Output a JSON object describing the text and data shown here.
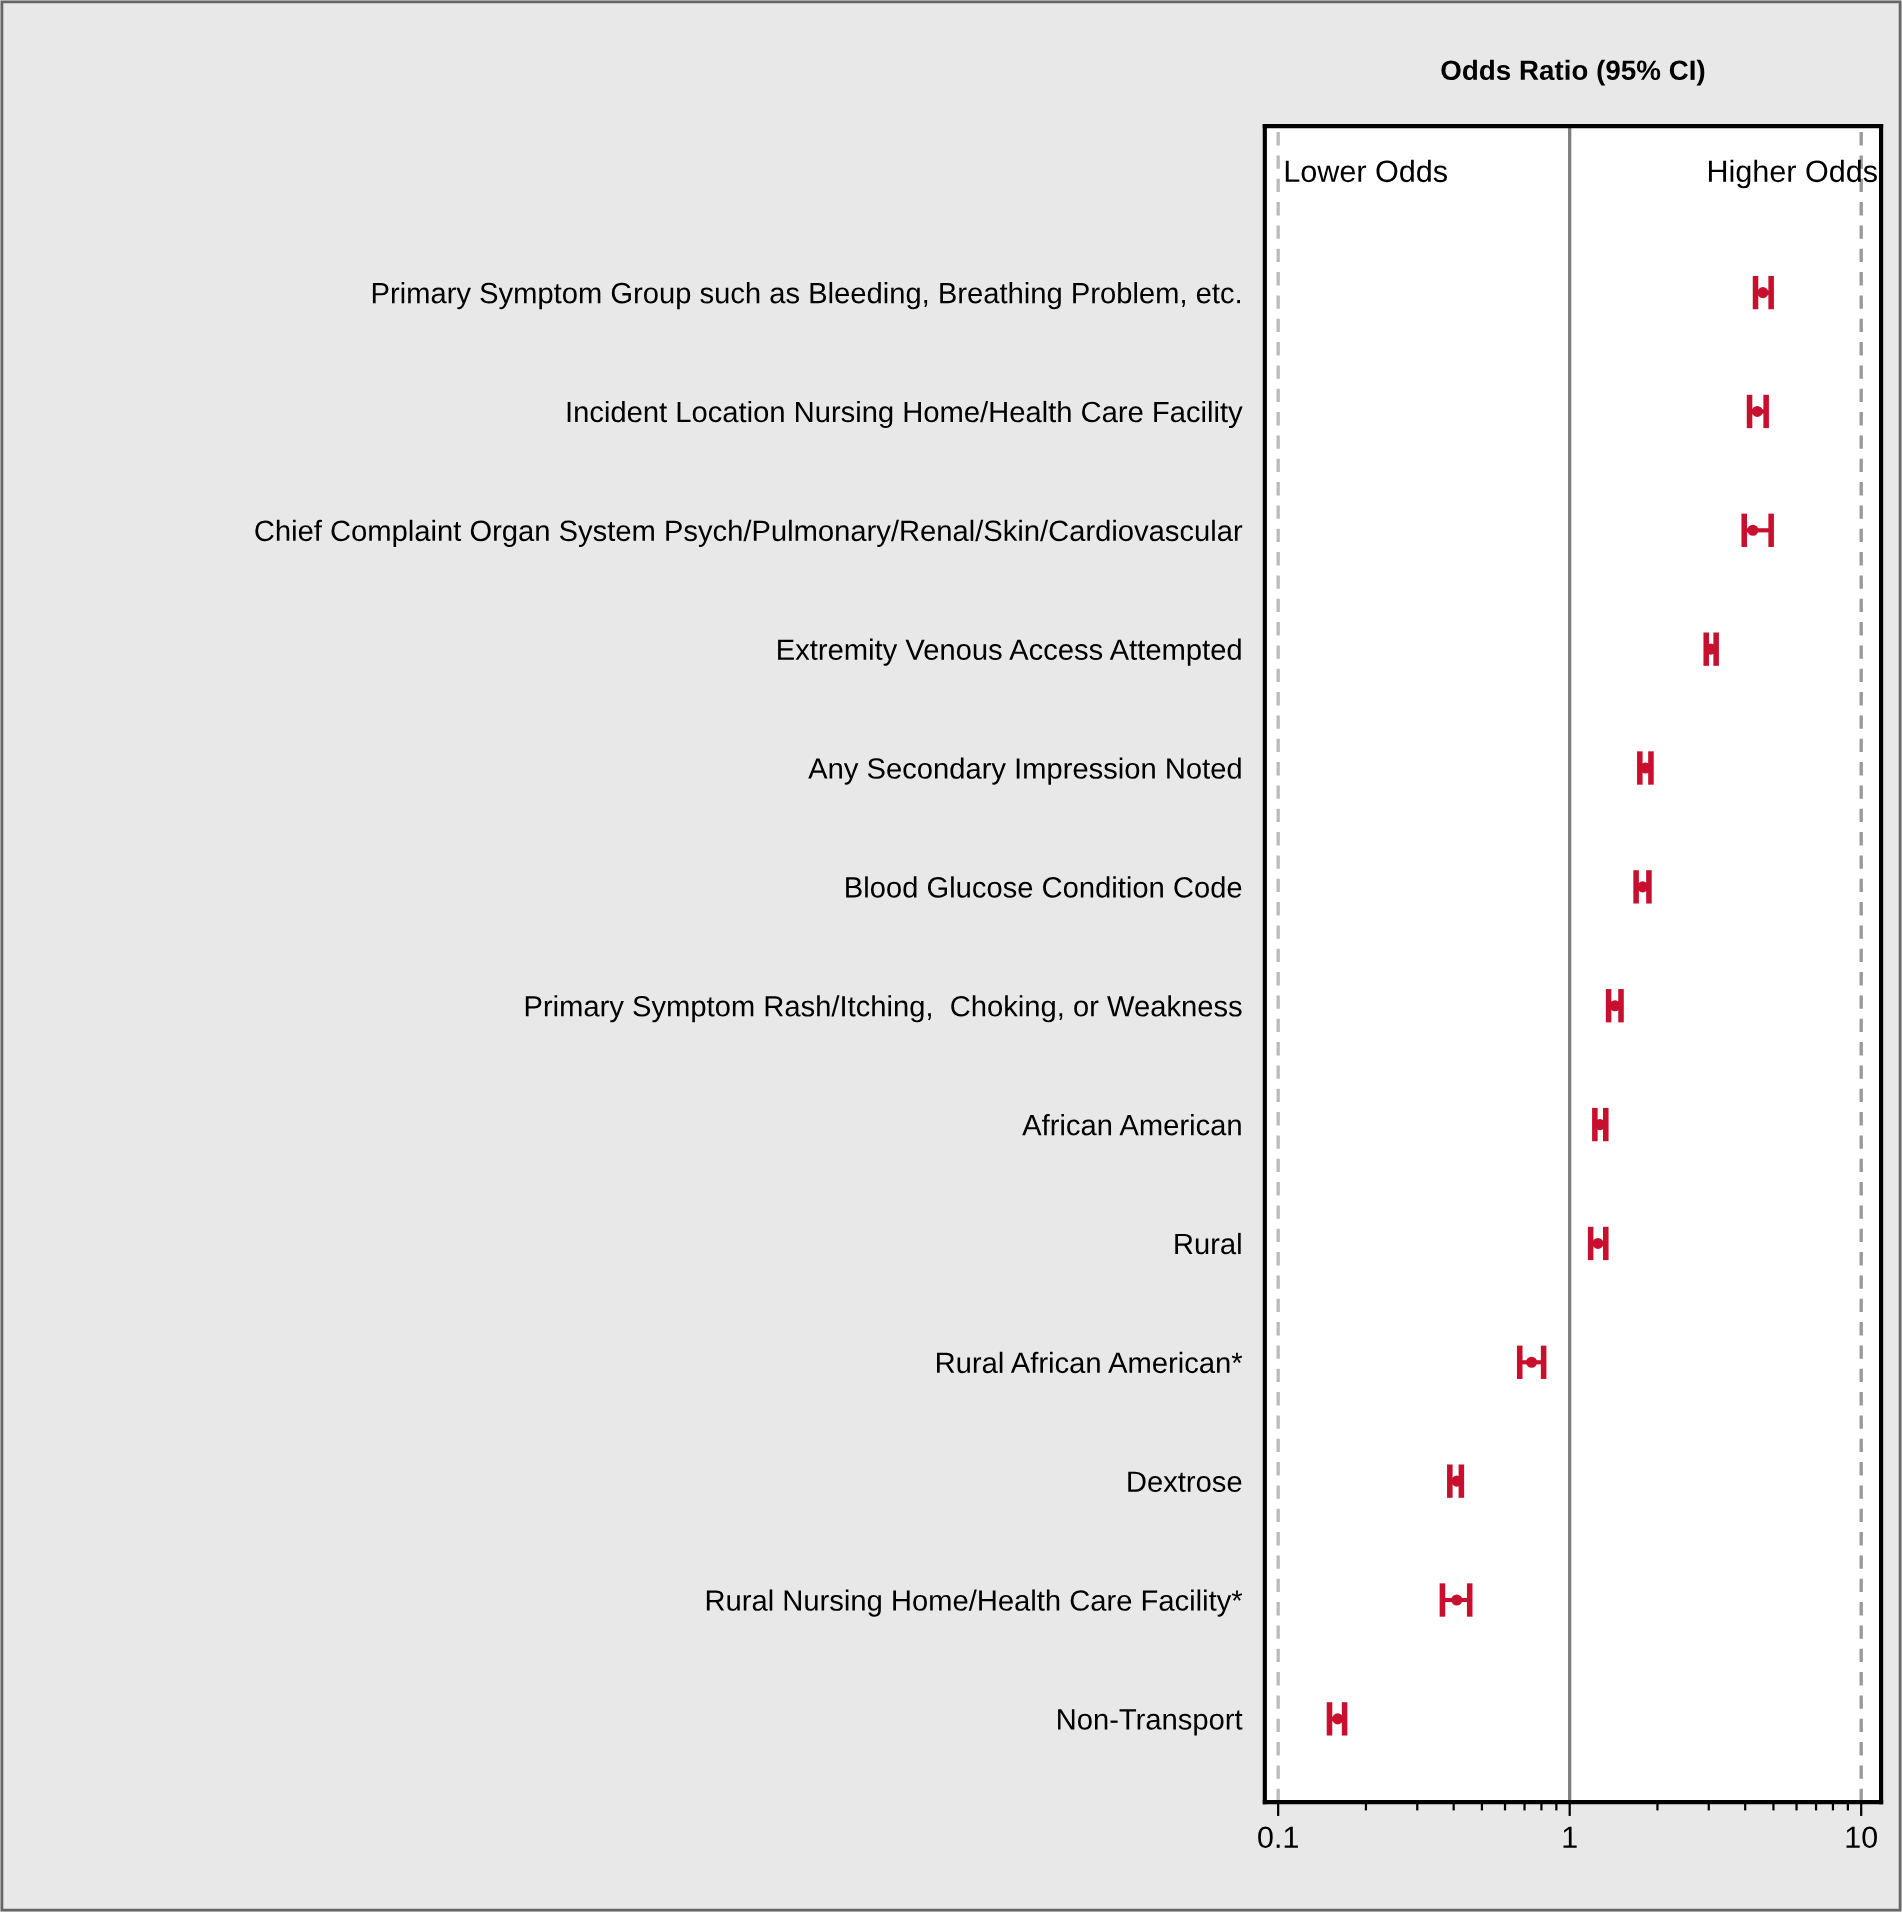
{
  "chart_data": {
    "type": "scatter",
    "orientation": "horizontal",
    "title": "Odds Ratio (95% CI)",
    "annotations": [
      "Lower Odds",
      "Higher Odds"
    ],
    "categories": [
      "Primary Symptom Group such as Bleeding, Breathing Problem, etc.",
      "Incident Location Nursing Home/Health Care Facility",
      "Chief Complaint Organ System Psych/Pulmonary/Renal/Skin/Cardiovascular",
      "Extremity Venous Access Attempted",
      "Any Secondary Impression Noted",
      "Blood Glucose Condition Code",
      "Primary Symptom Rash/Itching,  Choking, or Weakness",
      "African American",
      "Rural",
      "Rural African American*",
      "Dextrose",
      "Rural Nursing Home/Health Care Facility*",
      "Non-Transport"
    ],
    "series": [
      {
        "color": "#c8102e",
        "values": [
          4.6,
          4.4,
          4.25,
          3.05,
          1.82,
          1.78,
          1.43,
          1.27,
          1.25,
          0.74,
          0.41,
          0.41,
          0.16
        ],
        "errors": [
          [
            4.34,
            4.91
          ],
          [
            4.14,
            4.72
          ],
          [
            3.97,
            4.91
          ],
          [
            2.94,
            3.18
          ],
          [
            1.74,
            1.9
          ],
          [
            1.69,
            1.87
          ],
          [
            1.36,
            1.5
          ],
          [
            1.22,
            1.33
          ],
          [
            1.18,
            1.33
          ],
          [
            0.674,
            0.814
          ],
          [
            0.388,
            0.425
          ],
          [
            0.366,
            0.454
          ],
          [
            0.15,
            0.169
          ]
        ]
      }
    ],
    "log": "x",
    "xlim": [
      0.09,
      11.7
    ],
    "xticks": [
      0.1,
      {
        "value": 0.2,
        "label": null
      },
      {
        "value": 0.3,
        "label": null
      },
      {
        "value": 0.4,
        "label": null
      },
      {
        "value": 0.5,
        "label": null
      },
      {
        "value": 0.6,
        "label": null
      },
      {
        "value": 0.7,
        "label": null
      },
      {
        "value": 0.8,
        "label": null
      },
      {
        "value": 0.9,
        "label": null
      },
      1,
      {
        "value": 2,
        "label": null
      },
      {
        "value": 3,
        "label": null
      },
      {
        "value": 4,
        "label": null
      },
      {
        "value": 5,
        "label": null
      },
      {
        "value": 6,
        "label": null
      },
      {
        "value": 7,
        "label": null
      },
      {
        "value": 8,
        "label": null
      },
      {
        "value": 9,
        "label": null
      },
      10
    ],
    "ref_lines": [
      {
        "axis": "x",
        "value": 1,
        "color": "#808080",
        "line_style": "solid"
      },
      {
        "axis": "x",
        "value": 0.1,
        "color": "#bbbbbb",
        "line_style": "dashed"
      },
      {
        "axis": "x",
        "value": 10,
        "color": "#999999",
        "line_style": "dashed"
      }
    ],
    "marker": "circle",
    "grid": false,
    "legend": false
  }
}
